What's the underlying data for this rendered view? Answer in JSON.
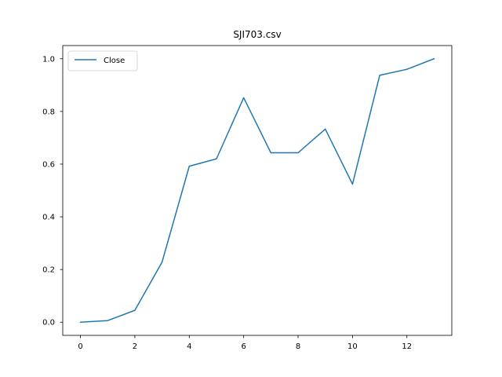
{
  "chart_data": {
    "type": "line",
    "title": "SJI703.csv",
    "xlabel": "",
    "ylabel": "",
    "xlim": [
      -0.65,
      13.65
    ],
    "ylim": [
      -0.05,
      1.05
    ],
    "xticks": [
      0,
      2,
      4,
      6,
      8,
      10,
      12
    ],
    "yticks": [
      0.0,
      0.2,
      0.4,
      0.6,
      0.8,
      1.0
    ],
    "xtick_labels": [
      "0",
      "2",
      "4",
      "6",
      "8",
      "10",
      "12"
    ],
    "ytick_labels": [
      "0.0",
      "0.2",
      "0.4",
      "0.6",
      "0.8",
      "1.0"
    ],
    "grid": false,
    "legend_position": "top-left",
    "series": [
      {
        "name": "Close",
        "color": "#1f77b4",
        "x": [
          0,
          1,
          2,
          3,
          4,
          5,
          6,
          7,
          8,
          9,
          10,
          11,
          12,
          13
        ],
        "y": [
          0.0,
          0.006,
          0.045,
          0.228,
          0.592,
          0.62,
          0.852,
          0.643,
          0.643,
          0.733,
          0.524,
          0.937,
          0.96,
          1.0
        ]
      }
    ]
  }
}
